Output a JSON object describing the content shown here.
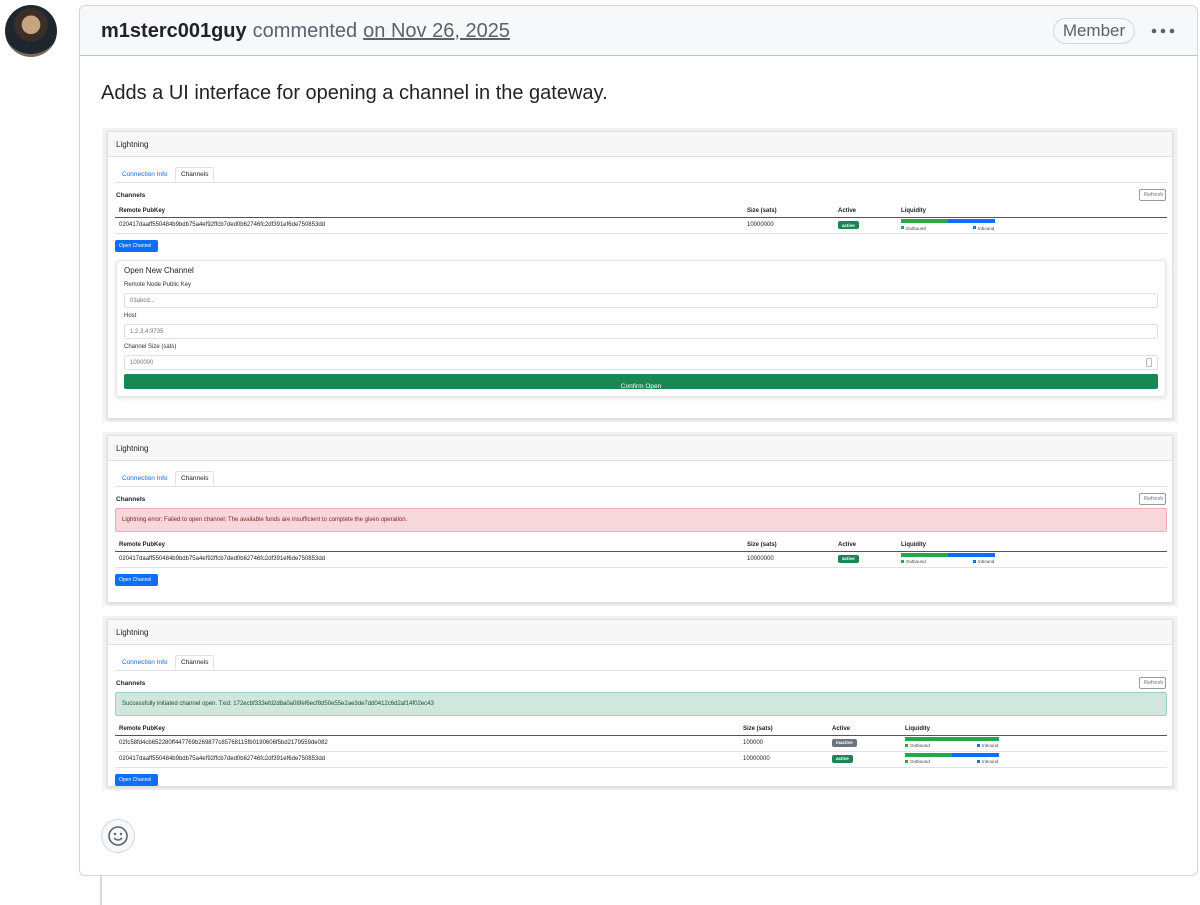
{
  "comment": {
    "author": "m1sterc001guy",
    "action": "commented",
    "date": "on Nov 26, 2025",
    "role": "Member",
    "body": "Adds a UI interface for opening a channel in the gateway."
  },
  "screenshots": [
    {
      "panel_title": "Lightning",
      "tabs": [
        "Connection Info",
        "Channels"
      ],
      "section": "Channels",
      "refresh": "Refresh",
      "columns": [
        "Remote PubKey",
        "Size (sats)",
        "Active",
        "Liquidity"
      ],
      "rows": [
        {
          "pubkey": "020417daaff550484b9bdb75a4ef92ffcb7ded0b62746fc2df391ef6de750853dd",
          "size": "10000000",
          "status": "active",
          "status_kind": "success",
          "outbound_share": 50,
          "outbound_label": "Outbound",
          "inbound_label": "Inbound"
        }
      ],
      "button": "Open Channel",
      "form": {
        "title": "Open New Channel",
        "fields": [
          {
            "label": "Remote Node Public Key",
            "input": "03abcd..."
          },
          {
            "label": "Host",
            "input": "1.2.3.4:9735"
          },
          {
            "label": "Channel Size (sats)",
            "input": "1000000"
          }
        ],
        "submit": "Confirm Open"
      }
    },
    {
      "panel_title": "Lightning",
      "tabs": [
        "Connection Info",
        "Channels"
      ],
      "section": "Channels",
      "refresh": "Refresh",
      "alert": {
        "kind": "danger",
        "text": "Lightning error: Failed to open channel: The available funds are insufficient to complete the given operation."
      },
      "columns": [
        "Remote PubKey",
        "Size (sats)",
        "Active",
        "Liquidity"
      ],
      "rows": [
        {
          "pubkey": "020417daaff550484b9bdb75a4ef92ffcb7ded0b62746fc2df391ef6de750853dd",
          "size": "10000000",
          "status": "active",
          "status_kind": "success",
          "outbound_share": 50,
          "outbound_label": "Outbound",
          "inbound_label": "Inbound"
        }
      ],
      "button": "Open Channel"
    },
    {
      "panel_title": "Lightning",
      "tabs": [
        "Connection Info",
        "Channels"
      ],
      "section": "Channels",
      "refresh": "Refresh",
      "alert": {
        "kind": "success",
        "text": "Successfully initiated channel open. Txid: 172ecbf333efd2d8a0a08fef6ecf8d50e55e2ae3de7dd0412c6d2af14f02ec43"
      },
      "columns": [
        "Remote PubKey",
        "Size (sats)",
        "Active",
        "Liquidity"
      ],
      "rows": [
        {
          "pubkey": "02fc58fd4cb652280ff447769b269877c85768115fb0190606f5bd2179559de082",
          "size": "100000",
          "status": "inactive",
          "status_kind": "secondary",
          "outbound_share": 100,
          "outbound_label": "Outbound",
          "inbound_label": "Inbound"
        },
        {
          "pubkey": "020417daaff550484b9bdb75a4ef92ffcb7ded0b62746fc2df391ef6de750853dd",
          "size": "10000000",
          "status": "active",
          "status_kind": "success",
          "outbound_share": 50,
          "outbound_label": "Outbound",
          "inbound_label": "Inbound"
        }
      ],
      "button": "Open Channel"
    }
  ]
}
